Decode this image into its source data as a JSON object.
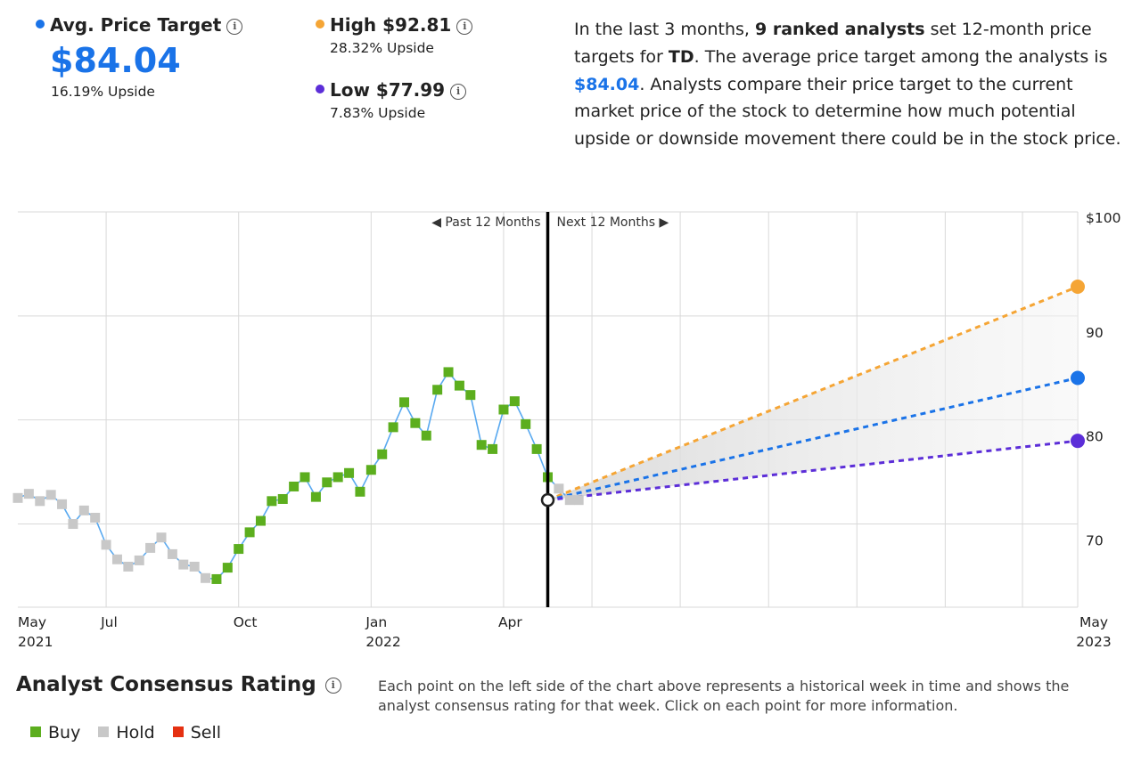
{
  "avg": {
    "label": "Avg. Price Target",
    "value": "$84.04",
    "upside": "16.19% Upside",
    "color": "#1a73e8"
  },
  "high": {
    "label": "High $92.81",
    "upside": "28.32% Upside",
    "color": "#f5a535"
  },
  "low": {
    "label": "Low $77.99",
    "upside": "7.83% Upside",
    "color": "#5c2ed8"
  },
  "info_icon": "info-circle-icon",
  "description": {
    "p1": "In the last 3 months, ",
    "analysts": "9 ranked analysts",
    "p2": " set 12-month price targets for ",
    "ticker": "TD",
    "p3": ". The average price target among the analysts is ",
    "avg": "$84.04",
    "p4": ". Analysts compare their price target to the current market price of the stock to determine how much potential upside or downside movement there could be in the stock price."
  },
  "chart_data": {
    "type": "line",
    "period_labels": {
      "past": "Past 12 Months",
      "next": "Next 12 Months"
    },
    "y_ticks": [
      {
        "value": 100,
        "label": "$100"
      },
      {
        "value": 90,
        "label": "90"
      },
      {
        "value": 80,
        "label": "80"
      },
      {
        "value": 70,
        "label": "70"
      }
    ],
    "ylim": [
      62,
      100
    ],
    "x_ticks": [
      {
        "t": 0,
        "line1": "May",
        "line2": "2021"
      },
      {
        "t": 2,
        "line1": "Jul",
        "line2": ""
      },
      {
        "t": 5,
        "line1": "Oct",
        "line2": ""
      },
      {
        "t": 8,
        "line1": "Jan",
        "line2": "2022"
      },
      {
        "t": 11,
        "line1": "Apr",
        "line2": ""
      },
      {
        "t": 24,
        "line1": "May",
        "line2": "2023"
      }
    ],
    "xlim": [
      0,
      24
    ],
    "today": 12,
    "grid": true,
    "ratings_colors": {
      "Buy": "#5cae1e",
      "Hold": "#c8c8c8",
      "Sell": "#e53011"
    },
    "history": [
      {
        "t": 0.0,
        "v": 72.5,
        "r": "Hold"
      },
      {
        "t": 0.25,
        "v": 72.9,
        "r": "Hold"
      },
      {
        "t": 0.5,
        "v": 72.2,
        "r": "Hold"
      },
      {
        "t": 0.75,
        "v": 72.8,
        "r": "Hold"
      },
      {
        "t": 1.0,
        "v": 71.9,
        "r": "Hold"
      },
      {
        "t": 1.25,
        "v": 70.0,
        "r": "Hold"
      },
      {
        "t": 1.5,
        "v": 71.3,
        "r": "Hold"
      },
      {
        "t": 1.75,
        "v": 70.6,
        "r": "Hold"
      },
      {
        "t": 2.0,
        "v": 68.0,
        "r": "Hold"
      },
      {
        "t": 2.25,
        "v": 66.6,
        "r": "Hold"
      },
      {
        "t": 2.5,
        "v": 65.9,
        "r": "Hold"
      },
      {
        "t": 2.75,
        "v": 66.5,
        "r": "Hold"
      },
      {
        "t": 3.0,
        "v": 67.7,
        "r": "Hold"
      },
      {
        "t": 3.25,
        "v": 68.7,
        "r": "Hold"
      },
      {
        "t": 3.5,
        "v": 67.1,
        "r": "Hold"
      },
      {
        "t": 3.75,
        "v": 66.1,
        "r": "Hold"
      },
      {
        "t": 4.0,
        "v": 65.9,
        "r": "Hold"
      },
      {
        "t": 4.25,
        "v": 64.8,
        "r": "Hold"
      },
      {
        "t": 4.5,
        "v": 64.7,
        "r": "Buy"
      },
      {
        "t": 4.75,
        "v": 65.8,
        "r": "Buy"
      },
      {
        "t": 5.0,
        "v": 67.6,
        "r": "Buy"
      },
      {
        "t": 5.25,
        "v": 69.2,
        "r": "Buy"
      },
      {
        "t": 5.5,
        "v": 70.3,
        "r": "Buy"
      },
      {
        "t": 5.75,
        "v": 72.2,
        "r": "Buy"
      },
      {
        "t": 6.0,
        "v": 72.4,
        "r": "Buy"
      },
      {
        "t": 6.25,
        "v": 73.6,
        "r": "Buy"
      },
      {
        "t": 6.5,
        "v": 74.5,
        "r": "Buy"
      },
      {
        "t": 6.75,
        "v": 72.6,
        "r": "Buy"
      },
      {
        "t": 7.0,
        "v": 74.0,
        "r": "Buy"
      },
      {
        "t": 7.25,
        "v": 74.5,
        "r": "Buy"
      },
      {
        "t": 7.5,
        "v": 74.9,
        "r": "Buy"
      },
      {
        "t": 7.75,
        "v": 73.1,
        "r": "Buy"
      },
      {
        "t": 8.0,
        "v": 75.2,
        "r": "Buy"
      },
      {
        "t": 8.25,
        "v": 76.7,
        "r": "Buy"
      },
      {
        "t": 8.5,
        "v": 79.3,
        "r": "Buy"
      },
      {
        "t": 8.75,
        "v": 81.7,
        "r": "Buy"
      },
      {
        "t": 9.0,
        "v": 79.7,
        "r": "Buy"
      },
      {
        "t": 9.25,
        "v": 78.5,
        "r": "Buy"
      },
      {
        "t": 9.5,
        "v": 82.9,
        "r": "Buy"
      },
      {
        "t": 9.75,
        "v": 84.6,
        "r": "Buy"
      },
      {
        "t": 10.0,
        "v": 83.3,
        "r": "Buy"
      },
      {
        "t": 10.25,
        "v": 82.4,
        "r": "Buy"
      },
      {
        "t": 10.5,
        "v": 77.6,
        "r": "Buy"
      },
      {
        "t": 10.75,
        "v": 77.2,
        "r": "Buy"
      },
      {
        "t": 11.0,
        "v": 81.0,
        "r": "Buy"
      },
      {
        "t": 11.25,
        "v": 81.8,
        "r": "Buy"
      },
      {
        "t": 11.5,
        "v": 79.6,
        "r": "Buy"
      },
      {
        "t": 11.75,
        "v": 77.2,
        "r": "Buy"
      },
      {
        "t": 12.0,
        "v": 74.5,
        "r": "Buy"
      },
      {
        "t": 12.25,
        "v": 73.4,
        "r": "Hold"
      },
      {
        "t": 12.5,
        "v": 72.3,
        "r": "Hold"
      },
      {
        "t": 12.7,
        "v": 72.3,
        "r": "Hold"
      }
    ],
    "current": {
      "t": 12,
      "v": 72.3
    },
    "targets": {
      "t": 24,
      "high": 92.81,
      "avg": 84.04,
      "low": 77.99
    },
    "line_color": "#59a9f0"
  },
  "rating": {
    "title": "Analyst Consensus Rating",
    "description": "Each point on the left side of the chart above represents a historical week in time and shows the analyst consensus rating for that week. Click on each point for more information.",
    "legend": [
      {
        "label": "Buy",
        "color": "#5cae1e"
      },
      {
        "label": "Hold",
        "color": "#c8c8c8"
      },
      {
        "label": "Sell",
        "color": "#e53011"
      }
    ]
  }
}
